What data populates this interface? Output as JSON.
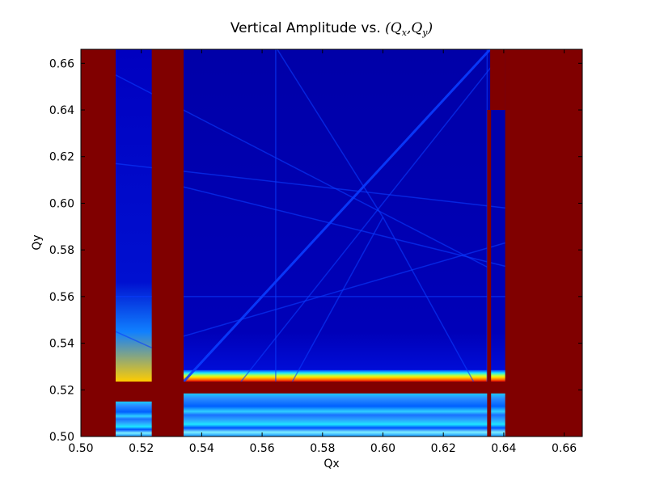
{
  "chart_data": {
    "type": "heatmap",
    "title_prefix": "Vertical Amplitude vs. ",
    "title_open": "(",
    "title_q1": "Q",
    "title_q1_sub": "x",
    "title_comma": ",",
    "title_q2": "Q",
    "title_q2_sub": "y",
    "title_close": ")",
    "xlabel": "Qx",
    "ylabel": "Qy",
    "xlim": [
      0.5,
      0.666
    ],
    "ylim": [
      0.5,
      0.666
    ],
    "x_ticks": [
      "0.50",
      "0.52",
      "0.54",
      "0.56",
      "0.58",
      "0.60",
      "0.62",
      "0.64",
      "0.66"
    ],
    "y_ticks": [
      "0.50",
      "0.52",
      "0.54",
      "0.56",
      "0.58",
      "0.60",
      "0.62",
      "0.64",
      "0.66"
    ],
    "colormap": "jet",
    "colors": {
      "saturated": "#800000",
      "background": "#00008f",
      "low": "#0000cd",
      "resonance_line": "#0a3cff",
      "band_blue": "#2a8cff",
      "band_cyan": "#1ee6ff",
      "band_yellow": "#ffe600",
      "band_orange": "#ff7a00",
      "band_red": "#e60000"
    },
    "regions": [
      {
        "kind": "saturated",
        "x": [
          0.5,
          0.5115
        ],
        "y": [
          0.5,
          0.666
        ]
      },
      {
        "kind": "saturated",
        "x": [
          0.5235,
          0.534
        ],
        "y": [
          0.5,
          0.666
        ]
      },
      {
        "kind": "saturated",
        "x": [
          0.6405,
          0.666
        ],
        "y": [
          0.5,
          0.666
        ]
      },
      {
        "kind": "saturated",
        "x": [
          0.5115,
          0.6405
        ],
        "y": [
          0.5185,
          0.5235
        ]
      },
      {
        "kind": "saturated",
        "x": [
          0.6355,
          0.6405
        ],
        "y": [
          0.64,
          0.666
        ]
      },
      {
        "kind": "saturated",
        "x": [
          0.6345,
          0.6358
        ],
        "y": [
          0.5,
          0.64
        ]
      }
    ],
    "resonance_lines": [
      {
        "x": [
          0.534,
          0.6355
        ],
        "y": [
          0.5235,
          0.666
        ]
      },
      {
        "x": [
          0.5115,
          0.6355
        ],
        "y": [
          0.655,
          0.572
        ]
      },
      {
        "x": [
          0.553,
          0.6405
        ],
        "y": [
          0.5235,
          0.666
        ]
      },
      {
        "x": [
          0.534,
          0.6405
        ],
        "y": [
          0.607,
          0.573
        ]
      },
      {
        "x": [
          0.5115,
          0.6405
        ],
        "y": [
          0.56,
          0.56
        ]
      },
      {
        "x": [
          0.534,
          0.6405
        ],
        "y": [
          0.543,
          0.583
        ]
      },
      {
        "x": [
          0.5115,
          0.6405
        ],
        "y": [
          0.617,
          0.598
        ]
      },
      {
        "x": [
          0.5115,
          0.5235
        ],
        "y": [
          0.545,
          0.538
        ]
      },
      {
        "x": [
          0.565,
          0.6
        ],
        "y": [
          0.666,
          0.594
        ]
      },
      {
        "x": [
          0.6,
          0.63
        ],
        "y": [
          0.594,
          0.5235
        ]
      },
      {
        "x": [
          0.6,
          0.57
        ],
        "y": [
          0.594,
          0.5235
        ]
      }
    ],
    "vertical_lines": [
      0.5645,
      0.6345
    ]
  }
}
